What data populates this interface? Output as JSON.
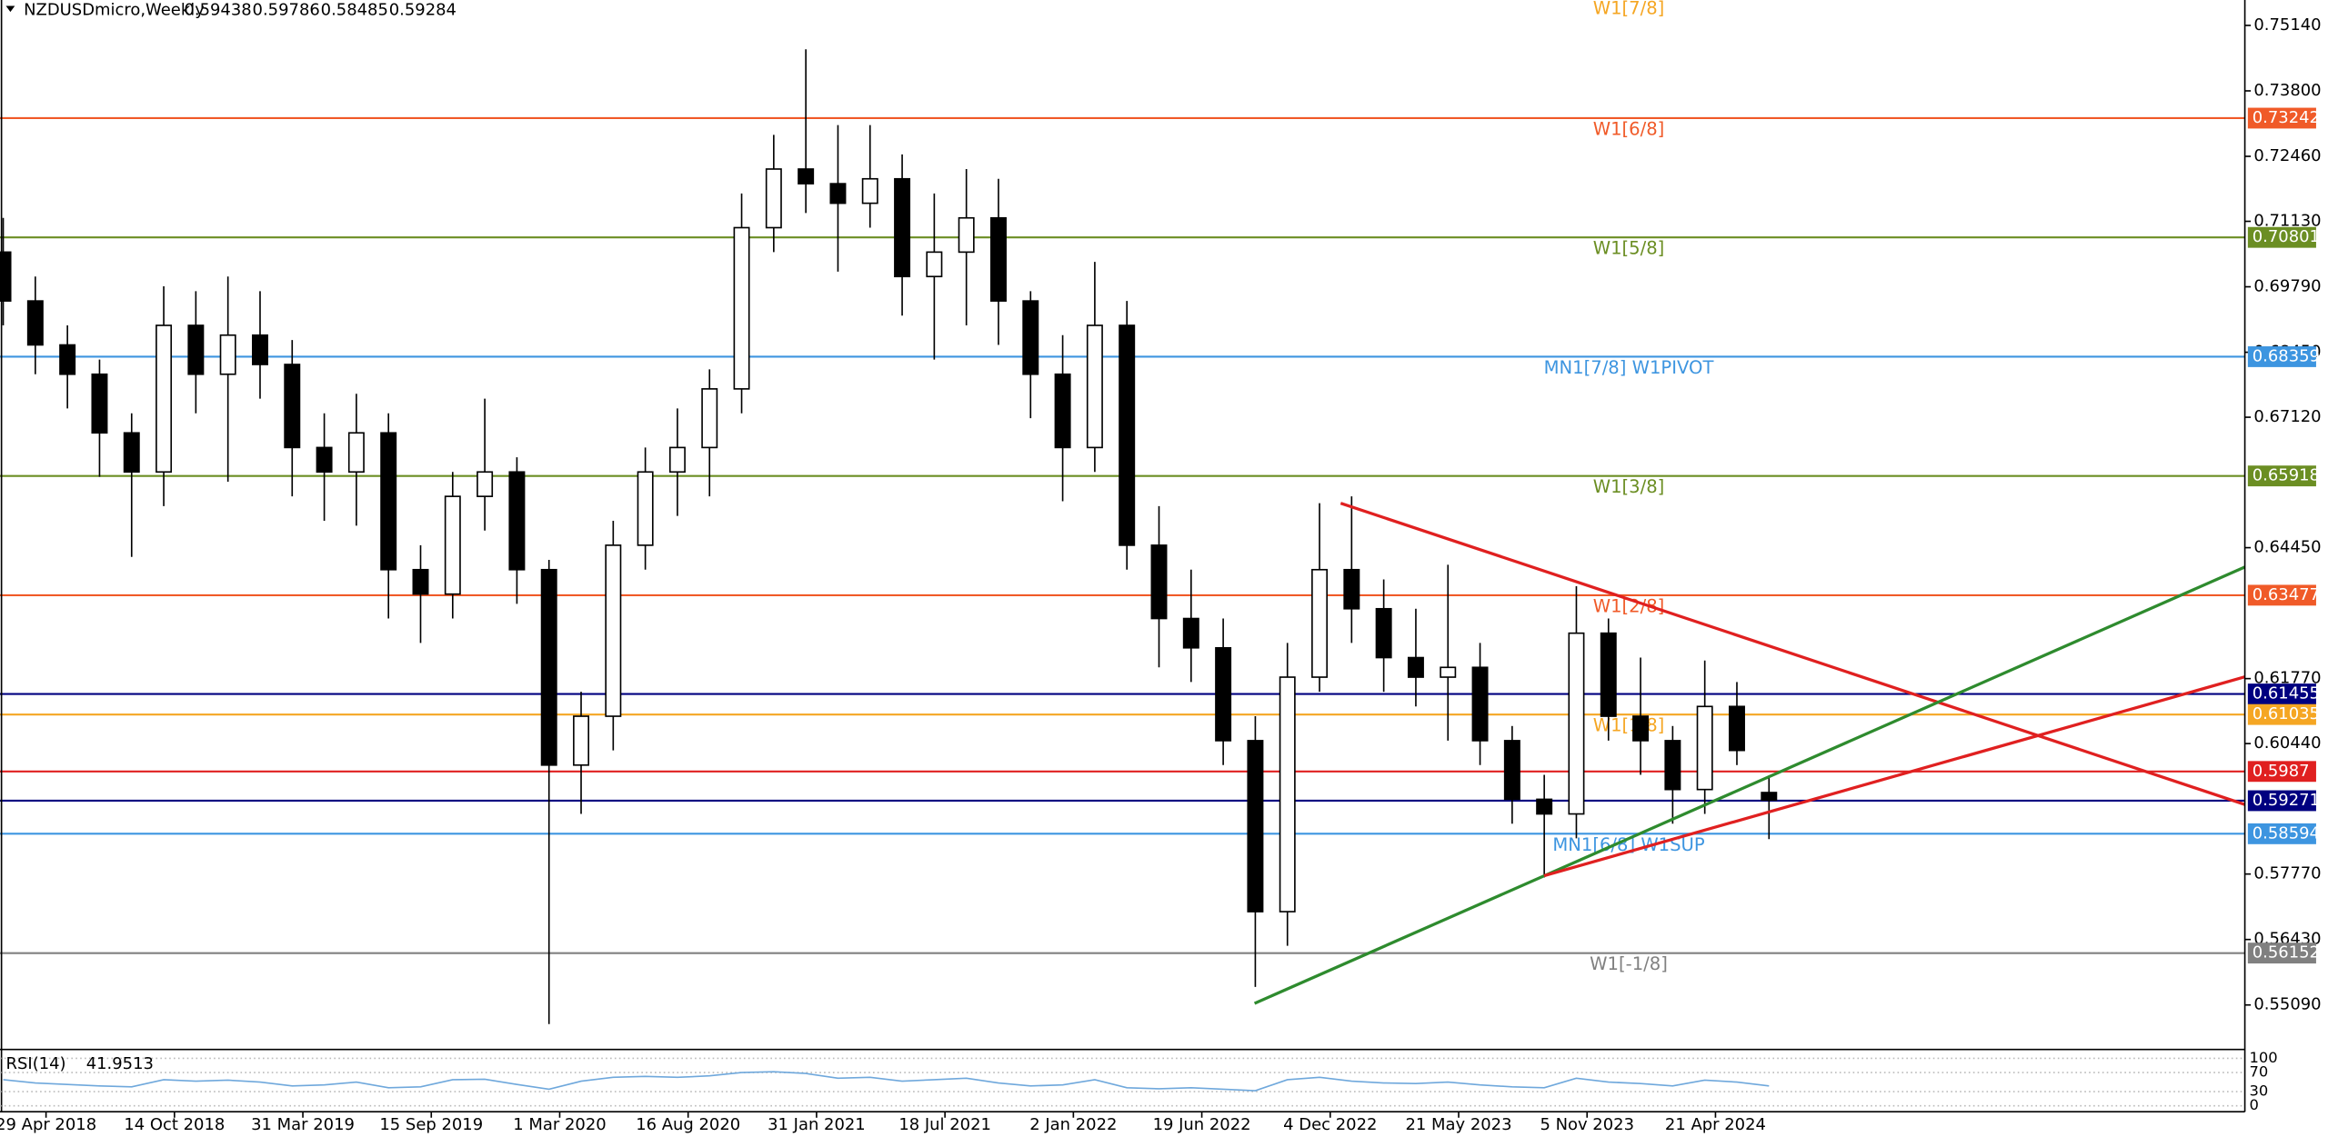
{
  "chart_data": {
    "type": "candlestick",
    "symbol": "NZDUSDmicro,Weekly",
    "x": [
      "4 Mar 2018",
      "15 Apr 2018",
      "27 May 2018",
      "8 Jul 2018",
      "19 Aug 2018",
      "30 Sep 2018",
      "11 Nov 2018",
      "23 Dec 2018",
      "3 Feb 2019",
      "17 Mar 2019",
      "28 Apr 2019",
      "9 Jun 2019",
      "21 Jul 2019",
      "1 Sep 2019",
      "13 Oct 2019",
      "24 Nov 2019",
      "5 Jan 2020",
      "16 Feb 2020",
      "29 Mar 2020",
      "10 May 2020",
      "21 Jun 2020",
      "2 Aug 2020",
      "13 Sep 2020",
      "25 Oct 2020",
      "6 Dec 2020",
      "17 Jan 2021",
      "28 Feb 2021",
      "11 Apr 2021",
      "23 May 2021",
      "4 Jul 2021",
      "15 Aug 2021",
      "26 Sep 2021",
      "7 Nov 2021",
      "19 Dec 2021",
      "30 Jan 2022",
      "13 Mar 2022",
      "24 Apr 2022",
      "5 Jun 2022",
      "17 Jul 2022",
      "28 Aug 2022",
      "9 Oct 2022",
      "20 Nov 2022",
      "1 Jan 2023",
      "12 Feb 2023",
      "26 Mar 2023",
      "7 May 2023",
      "18 Jun 2023",
      "30 Jul 2023",
      "10 Sep 2023",
      "22 Oct 2023",
      "3 Dec 2023",
      "14 Jan 2024",
      "25 Feb 2024",
      "7 Apr 2024",
      "19 May 2024",
      "30 Jun 2024"
    ],
    "open": [
      0.705,
      0.695,
      0.686,
      0.68,
      0.668,
      0.66,
      0.69,
      0.68,
      0.688,
      0.682,
      0.665,
      0.66,
      0.668,
      0.64,
      0.635,
      0.655,
      0.66,
      0.64,
      0.6,
      0.61,
      0.645,
      0.66,
      0.665,
      0.677,
      0.71,
      0.722,
      0.719,
      0.715,
      0.72,
      0.7,
      0.705,
      0.712,
      0.695,
      0.68,
      0.665,
      0.69,
      0.645,
      0.63,
      0.624,
      0.605,
      0.57,
      0.618,
      0.64,
      0.632,
      0.622,
      0.618,
      0.62,
      0.605,
      0.593,
      0.59,
      0.627,
      0.61,
      0.605,
      0.595,
      0.612,
      0.59438
    ],
    "high": [
      0.712,
      0.7,
      0.69,
      0.683,
      0.672,
      0.698,
      0.697,
      0.7,
      0.697,
      0.687,
      0.672,
      0.676,
      0.672,
      0.645,
      0.66,
      0.675,
      0.663,
      0.642,
      0.615,
      0.65,
      0.665,
      0.673,
      0.681,
      0.717,
      0.729,
      0.7465,
      0.731,
      0.731,
      0.725,
      0.717,
      0.722,
      0.72,
      0.697,
      0.688,
      0.703,
      0.695,
      0.653,
      0.64,
      0.63,
      0.61,
      0.625,
      0.6536,
      0.655,
      0.638,
      0.632,
      0.641,
      0.625,
      0.608,
      0.598,
      0.6366,
      0.63,
      0.622,
      0.608,
      0.6214,
      0.617,
      0.59786
    ],
    "low": [
      0.69,
      0.68,
      0.673,
      0.659,
      0.6426,
      0.653,
      0.672,
      0.658,
      0.675,
      0.655,
      0.65,
      0.649,
      0.63,
      0.625,
      0.63,
      0.648,
      0.633,
      0.547,
      0.59,
      0.603,
      0.64,
      0.651,
      0.655,
      0.672,
      0.705,
      0.713,
      0.701,
      0.71,
      0.692,
      0.683,
      0.69,
      0.686,
      0.671,
      0.654,
      0.66,
      0.64,
      0.62,
      0.617,
      0.6,
      0.5546,
      0.563,
      0.615,
      0.625,
      0.615,
      0.612,
      0.605,
      0.6,
      0.588,
      0.577,
      0.585,
      0.605,
      0.598,
      0.588,
      0.59,
      0.6,
      0.58485
    ],
    "close": [
      0.695,
      0.686,
      0.68,
      0.668,
      0.66,
      0.69,
      0.68,
      0.688,
      0.682,
      0.665,
      0.66,
      0.668,
      0.64,
      0.635,
      0.655,
      0.66,
      0.64,
      0.6,
      0.61,
      0.645,
      0.66,
      0.665,
      0.677,
      0.71,
      0.722,
      0.719,
      0.715,
      0.72,
      0.7,
      0.705,
      0.712,
      0.695,
      0.68,
      0.665,
      0.69,
      0.645,
      0.63,
      0.624,
      0.605,
      0.57,
      0.618,
      0.64,
      0.632,
      0.622,
      0.618,
      0.62,
      0.605,
      0.593,
      0.59,
      0.627,
      0.61,
      0.605,
      0.595,
      0.612,
      0.603,
      0.59284
    ],
    "ylim": [
      0.5418,
      0.7566
    ],
    "yticks": [
      {
        "value": 0.7514,
        "label": "0.75140"
      },
      {
        "value": 0.738,
        "label": "0.73800"
      },
      {
        "value": 0.7246,
        "label": "0.72460"
      },
      {
        "value": 0.7113,
        "label": "0.71130"
      },
      {
        "value": 0.6979,
        "label": "0.69790"
      },
      {
        "value": 0.6845,
        "label": "0.68450"
      },
      {
        "value": 0.6712,
        "label": "0.67120"
      },
      {
        "value": 0.6445,
        "label": "0.64450"
      },
      {
        "value": 0.6177,
        "label": "0.61770"
      },
      {
        "value": 0.6044,
        "label": "0.60440"
      },
      {
        "value": 0.5777,
        "label": "0.57770"
      },
      {
        "value": 0.5643,
        "label": "0.56430"
      },
      {
        "value": 0.5509,
        "label": "0.55090"
      }
    ],
    "xticks": [
      "29 Apr 2018",
      "14 Oct 2018",
      "31 Mar 2019",
      "15 Sep 2019",
      "1 Mar 2020",
      "16 Aug 2020",
      "31 Jan 2021",
      "18 Jul 2021",
      "2 Jan 2022",
      "19 Jun 2022",
      "4 Dec 2022",
      "21 May 2023",
      "5 Nov 2023",
      "21 Apr 2024"
    ],
    "levels": [
      {
        "label": "W1[7/8]",
        "color": "#f5a623"
      },
      {
        "label": "W1[6/8]",
        "value": 0.73242,
        "color": "#f05a28"
      },
      {
        "label": "W1[5/8]",
        "value": 0.70801,
        "color": "#6b8e23"
      },
      {
        "label": "MN1[7/8] W1PIVOT",
        "value": 0.68359,
        "color": "#3d95e0"
      },
      {
        "label": "W1[3/8]",
        "value": 0.65918,
        "color": "#6b8e23"
      },
      {
        "label": "W1[2/8]",
        "value": 0.63477,
        "color": "#f05a28"
      },
      {
        "value": 0.61455,
        "color": "#000080"
      },
      {
        "label": "W1[1/8]",
        "value": 0.61035,
        "color": "#f5a623"
      },
      {
        "value": 0.5987,
        "color": "#e02020"
      },
      {
        "value": 0.59271,
        "color": "#000080"
      },
      {
        "label": "MN1[6/8] W1SUP",
        "value": 0.58594,
        "color": "#3d95e0"
      },
      {
        "label": "W1[-1/8]",
        "value": 0.56152,
        "color": "#808080"
      }
    ],
    "rsi": {
      "name": "RSI(14)",
      "value": 41.9513,
      "color": "#6fa8dc",
      "values": [
        55,
        48,
        45,
        42,
        40,
        55,
        52,
        54,
        50,
        42,
        44,
        50,
        38,
        40,
        55,
        56,
        45,
        35,
        52,
        60,
        62,
        60,
        63,
        70,
        72,
        68,
        58,
        60,
        52,
        55,
        58,
        48,
        42,
        44,
        55,
        38,
        36,
        38,
        35,
        32,
        55,
        60,
        52,
        48,
        47,
        50,
        44,
        40,
        38,
        58,
        50,
        47,
        42,
        54,
        50,
        41.9513
      ],
      "ylim": [
        0,
        100
      ],
      "yticks": [
        100,
        70,
        30,
        0
      ]
    }
  }
}
